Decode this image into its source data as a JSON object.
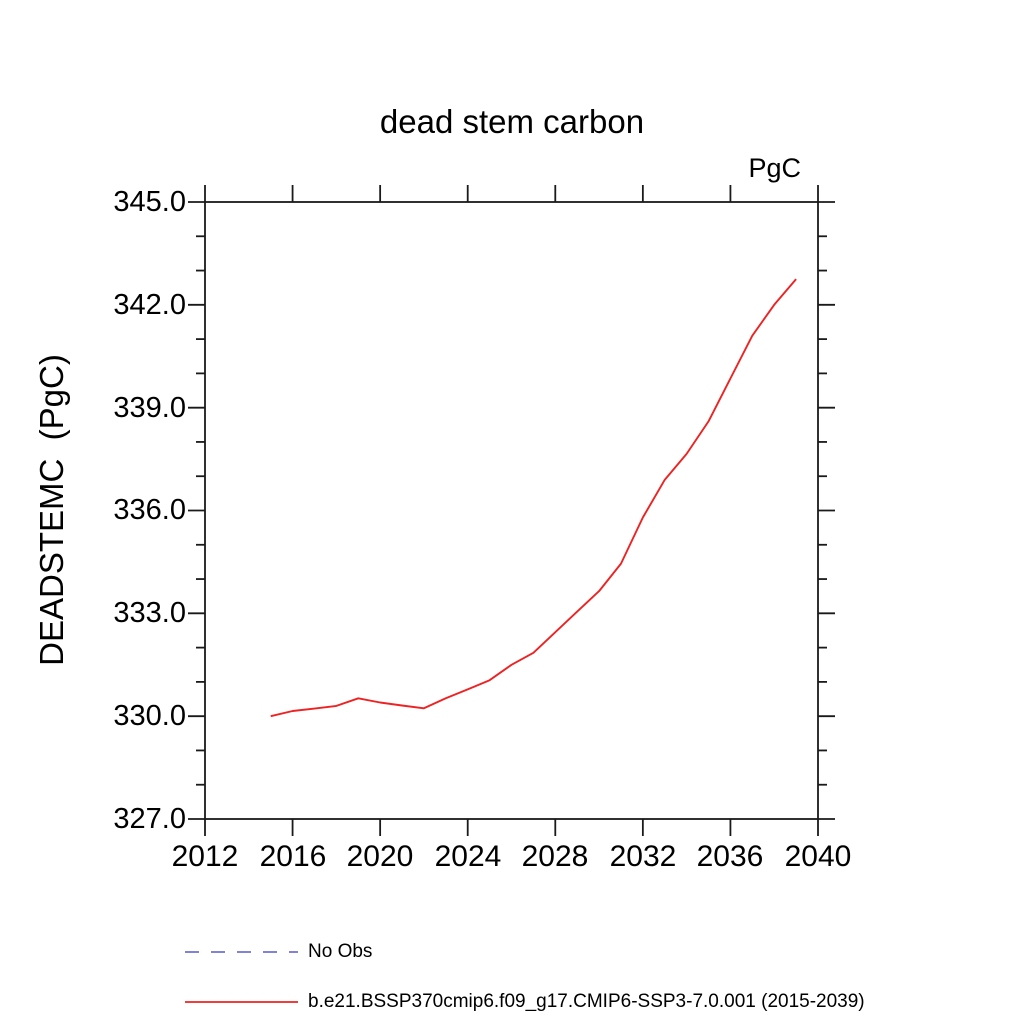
{
  "chart_data": {
    "type": "line",
    "title": "dead stem carbon",
    "unit_label": "PgC",
    "ylabel": "DEADSTEMC  (PgC)",
    "xlabel": "",
    "xlim": [
      2012,
      2040
    ],
    "ylim": [
      327,
      345
    ],
    "grid": false,
    "xticks": [
      2012,
      2016,
      2020,
      2024,
      2028,
      2032,
      2036,
      2040
    ],
    "xtick_labels": [
      "2012",
      "2016",
      "2020",
      "2024",
      "2028",
      "2032",
      "2036",
      "2040"
    ],
    "yticks_major": [
      327,
      330,
      333,
      336,
      339,
      342,
      345
    ],
    "ytick_labels_desc": [
      "345.0",
      "342.0",
      "339.0",
      "336.0",
      "333.0",
      "330.0",
      "327.0"
    ],
    "yticks_minor_step": 1,
    "axis_color": "#1a1a1a",
    "series": [
      {
        "name": "b.e21.BSSP370cmip6.f09_g17.CMIP6-SSP3-7.0.001 (2015-2039)",
        "color": "#ee2222",
        "style": "solid",
        "x": [
          2015,
          2016,
          2017,
          2018,
          2019,
          2020,
          2021,
          2022,
          2023,
          2024,
          2025,
          2026,
          2027,
          2028,
          2029,
          2030,
          2031,
          2032,
          2033,
          2034,
          2035,
          2036,
          2037,
          2038,
          2039
        ],
        "values": [
          330.0,
          330.15,
          330.22,
          330.3,
          330.52,
          330.4,
          330.31,
          330.23,
          330.52,
          330.78,
          331.05,
          331.5,
          331.85,
          332.45,
          333.05,
          333.65,
          334.45,
          335.8,
          336.9,
          337.65,
          338.6,
          339.85,
          341.1,
          342.0,
          342.75
        ]
      }
    ],
    "legend_position": "bottom-left",
    "legend": [
      {
        "label": "No Obs",
        "color": "#7070d0",
        "style": "dashed"
      },
      {
        "label": "b.e21.BSSP370cmip6.f09_g17.CMIP6-SSP3-7.0.001 (2015-2039)",
        "color": "#ee2222",
        "style": "solid"
      }
    ]
  }
}
